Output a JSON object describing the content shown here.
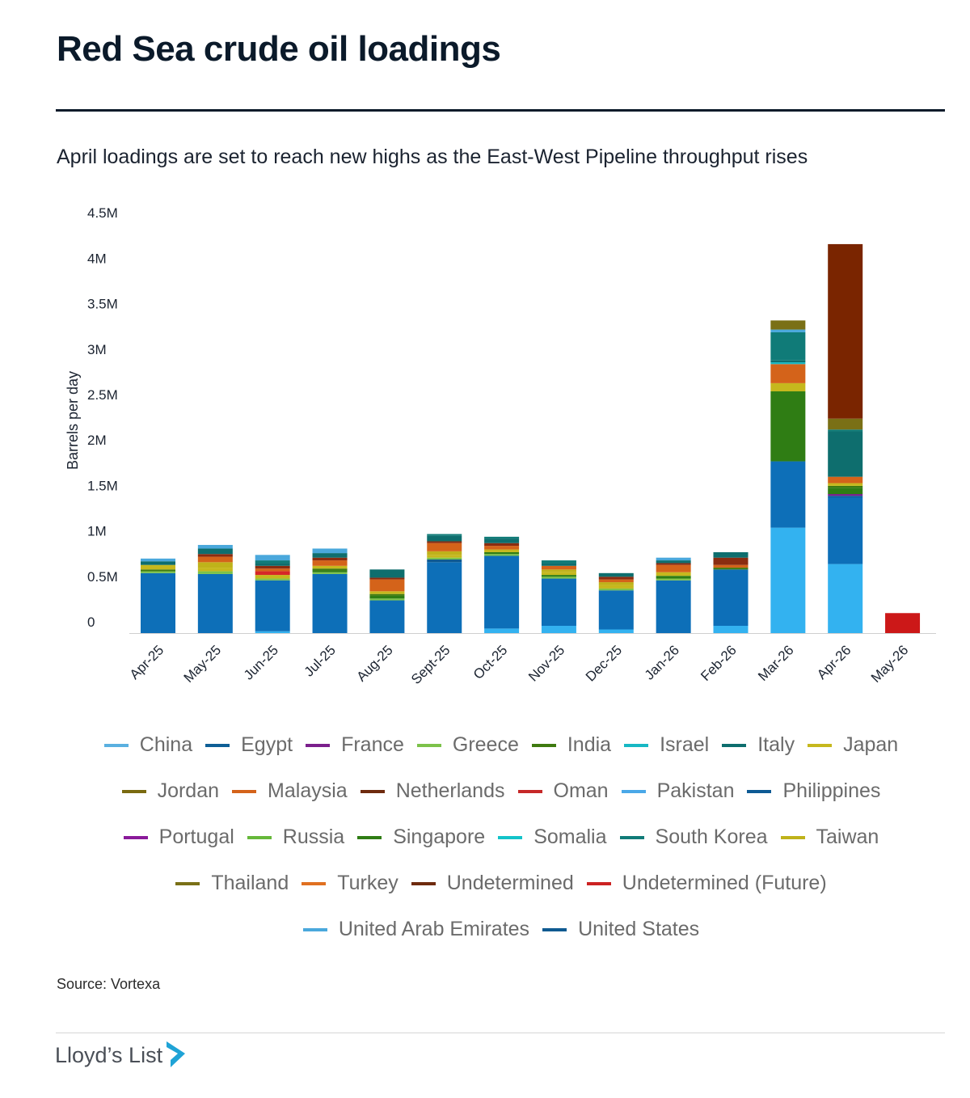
{
  "header": {
    "title": "Red Sea crude oil loadings",
    "subtitle": "April loadings are set to reach new highs as the East-West Pipeline throughput rises"
  },
  "footer": {
    "source": "Source: Vortexa",
    "logo_text": "Lloyd’s List",
    "logo_icon": "lloyds-list-chevron-icon",
    "logo_color": "#1fa3d6"
  },
  "chart_data": {
    "type": "bar",
    "stacked": true,
    "title": "Red Sea crude oil loadings",
    "ylabel": "Barrels per day",
    "xlabel": "",
    "ylim": [
      0,
      4500000
    ],
    "yticks": [
      {
        "value": 0,
        "label": "0"
      },
      {
        "value": 500000,
        "label": "0.5M"
      },
      {
        "value": 1000000,
        "label": "1M"
      },
      {
        "value": 1500000,
        "label": "1.5M"
      },
      {
        "value": 2000000,
        "label": "2M"
      },
      {
        "value": 2500000,
        "label": "2.5M"
      },
      {
        "value": 3000000,
        "label": "3M"
      },
      {
        "value": 3500000,
        "label": "3.5M"
      },
      {
        "value": 4000000,
        "label": "4M"
      },
      {
        "value": 4500000,
        "label": "4.5M"
      }
    ],
    "categories": [
      "Apr-25",
      "May-25",
      "Jun-25",
      "Jul-25",
      "Aug-25",
      "Sept-25",
      "Oct-25",
      "Nov-25",
      "Dec-25",
      "Jan-26",
      "Feb-26",
      "Mar-26",
      "Apr-26",
      "May-26"
    ],
    "series": [
      {
        "name": "Pakistan",
        "color": "#33b2f0",
        "values": [
          0,
          0,
          20000,
          0,
          0,
          0,
          50000,
          80000,
          40000,
          0,
          80000,
          1160000,
          760000,
          0
        ]
      },
      {
        "name": "China",
        "color": "#5ab0e0",
        "values": [
          0,
          0,
          0,
          0,
          0,
          0,
          0,
          0,
          0,
          0,
          0,
          0,
          0,
          0
        ]
      },
      {
        "name": "Egypt",
        "color": "#0d6fb8",
        "values": [
          660000,
          650000,
          560000,
          650000,
          360000,
          780000,
          800000,
          520000,
          430000,
          580000,
          620000,
          730000,
          730000,
          0
        ]
      },
      {
        "name": "Philippines",
        "color": "#0a5f9e",
        "values": [
          0,
          0,
          0,
          0,
          0,
          0,
          0,
          0,
          0,
          0,
          0,
          0,
          20000,
          0
        ]
      },
      {
        "name": "United States",
        "color": "#0f5a91",
        "values": [
          0,
          0,
          0,
          0,
          0,
          30000,
          0,
          0,
          0,
          0,
          0,
          0,
          0,
          0
        ]
      },
      {
        "name": "France",
        "color": "#7b1f8c",
        "values": [
          0,
          0,
          0,
          0,
          0,
          0,
          0,
          0,
          0,
          0,
          0,
          0,
          20000,
          0
        ]
      },
      {
        "name": "Portugal",
        "color": "#8a1a9a",
        "values": [
          0,
          0,
          0,
          0,
          0,
          0,
          0,
          0,
          0,
          0,
          0,
          0,
          0,
          0
        ]
      },
      {
        "name": "Greece",
        "color": "#7cc24a",
        "values": [
          20000,
          30000,
          20000,
          20000,
          20000,
          20000,
          20000,
          20000,
          20000,
          20000,
          0,
          0,
          0,
          0
        ]
      },
      {
        "name": "Russia",
        "color": "#66b83a",
        "values": [
          0,
          0,
          0,
          0,
          0,
          0,
          0,
          0,
          0,
          0,
          0,
          0,
          0,
          0
        ]
      },
      {
        "name": "Singapore",
        "color": "#2f7d14",
        "values": [
          0,
          0,
          0,
          20000,
          30000,
          0,
          20000,
          20000,
          0,
          30000,
          0,
          770000,
          70000,
          0
        ]
      },
      {
        "name": "India",
        "color": "#3f7a10",
        "values": [
          20000,
          0,
          0,
          20000,
          20000,
          0,
          0,
          0,
          0,
          0,
          20000,
          0,
          20000,
          0
        ]
      },
      {
        "name": "Japan",
        "color": "#c6b81d",
        "values": [
          50000,
          40000,
          40000,
          30000,
          30000,
          30000,
          30000,
          30000,
          40000,
          40000,
          0,
          90000,
          30000,
          0
        ]
      },
      {
        "name": "Taiwan",
        "color": "#bfb21a",
        "values": [
          0,
          60000,
          0,
          0,
          0,
          40000,
          0,
          30000,
          30000,
          0,
          0,
          0,
          0,
          0
        ]
      },
      {
        "name": "Oman",
        "color": "#d62728",
        "values": [
          0,
          0,
          40000,
          0,
          0,
          0,
          0,
          0,
          0,
          0,
          0,
          0,
          0,
          0
        ]
      },
      {
        "name": "Malaysia",
        "color": "#d4631a",
        "values": [
          0,
          60000,
          30000,
          60000,
          130000,
          90000,
          40000,
          40000,
          30000,
          80000,
          30000,
          210000,
          70000,
          0
        ]
      },
      {
        "name": "Turkey",
        "color": "#e07020",
        "values": [
          0,
          0,
          0,
          0,
          0,
          0,
          0,
          0,
          0,
          0,
          0,
          0,
          0,
          0
        ]
      },
      {
        "name": "Netherlands",
        "color": "#8a2c10",
        "values": [
          0,
          30000,
          30000,
          30000,
          20000,
          20000,
          30000,
          0,
          30000,
          20000,
          80000,
          0,
          0,
          0
        ]
      },
      {
        "name": "Israel",
        "color": "#17b8c4",
        "values": [
          0,
          0,
          0,
          0,
          0,
          0,
          0,
          0,
          0,
          0,
          0,
          20000,
          0,
          0
        ]
      },
      {
        "name": "Somalia",
        "color": "#13c3c9",
        "values": [
          0,
          0,
          0,
          0,
          0,
          0,
          0,
          0,
          0,
          0,
          0,
          0,
          0,
          0
        ]
      },
      {
        "name": "Italy",
        "color": "#0e6e6e",
        "values": [
          40000,
          60000,
          30000,
          50000,
          90000,
          60000,
          50000,
          30000,
          40000,
          30000,
          60000,
          20000,
          500000,
          0
        ]
      },
      {
        "name": "South Korea",
        "color": "#107b78",
        "values": [
          0,
          0,
          30000,
          0,
          0,
          20000,
          20000,
          30000,
          0,
          0,
          0,
          310000,
          20000,
          0
        ]
      },
      {
        "name": "United Arab Emirates",
        "color": "#4aa8dc",
        "values": [
          30000,
          40000,
          60000,
          50000,
          0,
          0,
          0,
          0,
          0,
          30000,
          0,
          30000,
          0,
          0
        ]
      },
      {
        "name": "Jordan",
        "color": "#8a7a10",
        "values": [
          0,
          0,
          0,
          0,
          0,
          0,
          0,
          0,
          0,
          0,
          0,
          0,
          0,
          0
        ]
      },
      {
        "name": "Thailand",
        "color": "#7a7016",
        "values": [
          0,
          0,
          0,
          0,
          0,
          0,
          0,
          0,
          0,
          0,
          0,
          100000,
          120000,
          0
        ]
      },
      {
        "name": "Undetermined",
        "color": "#7a2500",
        "values": [
          0,
          0,
          0,
          0,
          0,
          0,
          0,
          0,
          0,
          0,
          0,
          0,
          1920000,
          0
        ]
      },
      {
        "name": "Undetermined (Future)",
        "color": "#cc1818",
        "values": [
          0,
          0,
          0,
          0,
          0,
          0,
          0,
          0,
          0,
          0,
          0,
          0,
          0,
          220000
        ]
      }
    ],
    "legend_rows": [
      [
        "China",
        "Egypt",
        "France",
        "Greece",
        "India",
        "Israel",
        "Italy",
        "Japan"
      ],
      [
        "Jordan",
        "Malaysia",
        "Netherlands",
        "Oman",
        "Pakistan",
        "Philippines"
      ],
      [
        "Portugal",
        "Russia",
        "Singapore",
        "Somalia",
        "South Korea",
        "Taiwan"
      ],
      [
        "Thailand",
        "Turkey",
        "Undetermined",
        "Undetermined (Future)"
      ],
      [
        "United Arab Emirates",
        "United States"
      ]
    ],
    "legend_colors": {
      "China": "#5ab0e0",
      "Egypt": "#0f5f96",
      "France": "#7b1f8c",
      "Greece": "#7cc24a",
      "India": "#3f7a10",
      "Israel": "#17b8c4",
      "Italy": "#0e6e6e",
      "Japan": "#c6b81d",
      "Jordan": "#7a6a10",
      "Malaysia": "#d4631a",
      "Netherlands": "#6e2a0e",
      "Oman": "#c62828",
      "Pakistan": "#4aa8e8",
      "Philippines": "#0d5a94",
      "Portugal": "#8a1a9a",
      "Russia": "#66b83a",
      "Singapore": "#2f7d14",
      "Somalia": "#13c3c9",
      "South Korea": "#107b78",
      "Taiwan": "#bfb21a",
      "Thailand": "#7a7016",
      "Turkey": "#e07020",
      "Undetermined": "#6e2a0e",
      "Undetermined (Future)": "#cc2222",
      "United Arab Emirates": "#4aa8dc",
      "United States": "#0f5a91"
    },
    "legend_position": "bottom",
    "grid": false
  }
}
